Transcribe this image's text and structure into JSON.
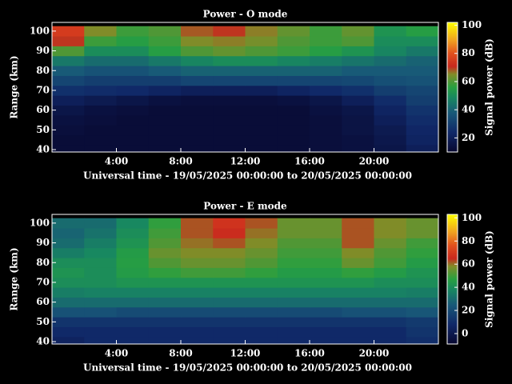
{
  "chart_data": [
    {
      "type": "heatmap",
      "title": "Power - O mode",
      "xlabel": "Universal time - 19/05/2025 00:00:00 to 20/05/2025 00:00:00",
      "ylabel": "Range (km)",
      "colorbar_label": "Signal power (dB)",
      "x": [
        1,
        3,
        5,
        7,
        9,
        11,
        13,
        15,
        17,
        19,
        21,
        23
      ],
      "y": [
        40,
        45,
        50,
        55,
        60,
        65,
        70,
        75,
        80,
        85,
        90,
        95,
        100
      ],
      "z": [
        [
          12,
          12,
          12,
          12,
          12,
          12,
          12,
          12,
          13,
          14,
          16,
          20
        ],
        [
          12,
          12,
          12,
          12,
          12,
          12,
          12,
          12,
          13,
          14,
          17,
          22
        ],
        [
          13,
          12,
          12,
          12,
          12,
          12,
          12,
          12,
          13,
          15,
          18,
          23
        ],
        [
          14,
          13,
          12,
          12,
          12,
          12,
          12,
          12,
          13,
          15,
          20,
          25
        ],
        [
          16,
          14,
          13,
          12,
          12,
          12,
          12,
          12,
          14,
          16,
          22,
          27
        ],
        [
          20,
          18,
          16,
          14,
          13,
          13,
          13,
          14,
          16,
          20,
          25,
          30
        ],
        [
          26,
          25,
          24,
          22,
          20,
          20,
          20,
          22,
          24,
          26,
          30,
          32
        ],
        [
          32,
          30,
          30,
          30,
          32,
          32,
          32,
          32,
          32,
          33,
          35,
          36
        ],
        [
          38,
          36,
          36,
          38,
          40,
          40,
          40,
          40,
          40,
          38,
          38,
          38
        ],
        [
          45,
          42,
          42,
          45,
          48,
          50,
          50,
          48,
          46,
          44,
          42,
          40
        ],
        [
          60,
          50,
          50,
          55,
          60,
          62,
          60,
          58,
          55,
          52,
          48,
          45
        ],
        [
          70,
          58,
          55,
          58,
          65,
          66,
          64,
          60,
          58,
          60,
          50,
          50
        ],
        [
          75,
          65,
          58,
          60,
          68,
          70,
          66,
          62,
          58,
          62,
          52,
          55
        ]
      ],
      "xlim": [
        0,
        24
      ],
      "ylim": [
        38.8,
        104.4
      ],
      "xticks": [
        {
          "value": 4,
          "label": "4:00"
        },
        {
          "value": 8,
          "label": "8:00"
        },
        {
          "value": 12,
          "label": "12:00"
        },
        {
          "value": 16,
          "label": "16:00"
        },
        {
          "value": 20,
          "label": "20:00"
        }
      ],
      "yticks": [
        40,
        50,
        60,
        70,
        80,
        90,
        100
      ],
      "clim": [
        10,
        102
      ],
      "cticks": [
        20,
        40,
        60,
        80,
        100
      ]
    },
    {
      "type": "heatmap",
      "title": "Power - E mode",
      "xlabel": "Universal time - 19/05/2025 00:00:00 to 20/05/2025 00:00:00",
      "ylabel": "Range (km)",
      "colorbar_label": "Signal power (dB)",
      "x": [
        1,
        3,
        5,
        7,
        9,
        11,
        13,
        15,
        17,
        19,
        21,
        23
      ],
      "y": [
        40,
        45,
        50,
        55,
        60,
        65,
        70,
        75,
        80,
        85,
        90,
        95,
        100
      ],
      "z": [
        [
          5,
          8,
          8,
          8,
          8,
          8,
          8,
          8,
          8,
          8,
          8,
          10
        ],
        [
          8,
          8,
          8,
          8,
          8,
          8,
          8,
          8,
          8,
          8,
          8,
          12
        ],
        [
          12,
          12,
          12,
          12,
          12,
          12,
          12,
          12,
          12,
          12,
          12,
          14
        ],
        [
          22,
          22,
          20,
          20,
          20,
          20,
          20,
          20,
          20,
          22,
          22,
          24
        ],
        [
          30,
          30,
          30,
          30,
          30,
          30,
          30,
          30,
          30,
          30,
          30,
          30
        ],
        [
          35,
          36,
          36,
          36,
          36,
          36,
          36,
          36,
          36,
          36,
          36,
          35
        ],
        [
          40,
          40,
          42,
          42,
          42,
          42,
          42,
          42,
          42,
          42,
          40,
          40
        ],
        [
          42,
          40,
          45,
          48,
          50,
          50,
          48,
          45,
          45,
          48,
          45,
          42
        ],
        [
          40,
          40,
          46,
          52,
          55,
          55,
          52,
          48,
          48,
          55,
          50,
          45
        ],
        [
          35,
          38,
          45,
          55,
          58,
          58,
          55,
          50,
          50,
          58,
          52,
          48
        ],
        [
          30,
          35,
          42,
          52,
          60,
          62,
          58,
          52,
          52,
          62,
          55,
          50
        ],
        [
          28,
          32,
          40,
          50,
          62,
          66,
          60,
          55,
          55,
          62,
          58,
          55
        ],
        [
          30,
          30,
          38,
          48,
          62,
          68,
          62,
          55,
          55,
          62,
          58,
          55
        ]
      ],
      "xlim": [
        0,
        24
      ],
      "ylim": [
        38.8,
        104.4
      ],
      "xticks": [
        {
          "value": 4,
          "label": "4:00"
        },
        {
          "value": 8,
          "label": "8:00"
        },
        {
          "value": 12,
          "label": "12:00"
        },
        {
          "value": 16,
          "label": "16:00"
        },
        {
          "value": 20,
          "label": "20:00"
        }
      ],
      "yticks": [
        40,
        50,
        60,
        70,
        80,
        90,
        100
      ],
      "clim": [
        -9,
        103
      ],
      "cticks": [
        0,
        20,
        40,
        60,
        80,
        100
      ]
    }
  ]
}
